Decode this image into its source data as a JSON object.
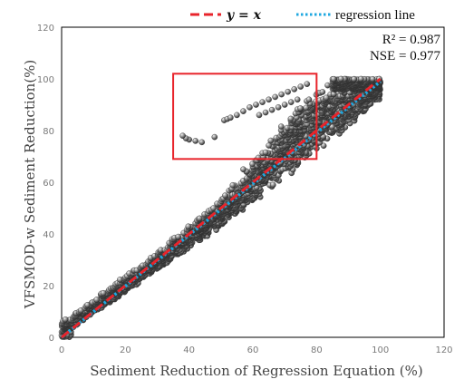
{
  "chart_data": {
    "type": "scatter",
    "xlabel": "Sediment Reduction of Regression Equation (%)",
    "ylabel": "VFSMOD-w Sediment Reduction(%)",
    "xlim": [
      0,
      120
    ],
    "ylim": [
      0,
      120
    ],
    "xticks": [
      0,
      20,
      40,
      60,
      80,
      100,
      120
    ],
    "yticks": [
      0,
      20,
      40,
      60,
      80,
      100,
      120
    ],
    "grid": false,
    "legend_position": "top",
    "legend": [
      {
        "label": "y = x",
        "style": "dashed",
        "color": "#e8242b"
      },
      {
        "label": "regression line",
        "style": "dotted",
        "color": "#1fa8e0"
      }
    ],
    "stats": {
      "r2": "R² = 0.987",
      "nse": "NSE = 0.977"
    },
    "reference_line": {
      "name": "y = x",
      "points": [
        [
          0,
          0
        ],
        [
          100,
          100
        ]
      ]
    },
    "regression_line": {
      "name": "regression line",
      "points": [
        [
          0,
          0
        ],
        [
          100,
          99
        ]
      ]
    },
    "highlight_box": {
      "x_range": [
        35,
        80
      ],
      "y_range": [
        69,
        102
      ],
      "color": "#e8242b"
    },
    "main_band": [
      {
        "x": 0,
        "y_low": 0,
        "y_high": 6
      },
      {
        "x": 10,
        "y_low": 9,
        "y_high": 15
      },
      {
        "x": 20,
        "y_low": 17,
        "y_high": 24
      },
      {
        "x": 30,
        "y_low": 26,
        "y_high": 33
      },
      {
        "x": 40,
        "y_low": 34,
        "y_high": 44
      },
      {
        "x": 50,
        "y_low": 42,
        "y_high": 54
      },
      {
        "x": 60,
        "y_low": 52,
        "y_high": 68
      },
      {
        "x": 70,
        "y_low": 61,
        "y_high": 84
      },
      {
        "x": 80,
        "y_low": 71,
        "y_high": 97
      },
      {
        "x": 90,
        "y_low": 81,
        "y_high": 100
      },
      {
        "x": 100,
        "y_low": 92,
        "y_high": 100
      }
    ],
    "outlier_points": [
      {
        "x": 38,
        "y": 78
      },
      {
        "x": 39,
        "y": 77
      },
      {
        "x": 40,
        "y": 76.5
      },
      {
        "x": 42,
        "y": 76
      },
      {
        "x": 44,
        "y": 75.5
      },
      {
        "x": 48,
        "y": 77.5
      },
      {
        "x": 51,
        "y": 84
      },
      {
        "x": 52,
        "y": 84.5
      },
      {
        "x": 53,
        "y": 85
      },
      {
        "x": 55,
        "y": 86
      },
      {
        "x": 57,
        "y": 87.5
      },
      {
        "x": 59,
        "y": 89
      },
      {
        "x": 61,
        "y": 90
      },
      {
        "x": 63,
        "y": 91
      },
      {
        "x": 65,
        "y": 92
      },
      {
        "x": 67,
        "y": 93
      },
      {
        "x": 69,
        "y": 94
      },
      {
        "x": 71,
        "y": 95
      },
      {
        "x": 73,
        "y": 96
      },
      {
        "x": 75,
        "y": 97
      },
      {
        "x": 77,
        "y": 98
      },
      {
        "x": 62,
        "y": 86
      },
      {
        "x": 64,
        "y": 87
      },
      {
        "x": 66,
        "y": 88
      },
      {
        "x": 68,
        "y": 89
      },
      {
        "x": 70,
        "y": 90
      },
      {
        "x": 72,
        "y": 91
      },
      {
        "x": 74,
        "y": 92
      },
      {
        "x": 57,
        "y": 65
      },
      {
        "x": 58,
        "y": 64
      }
    ]
  }
}
